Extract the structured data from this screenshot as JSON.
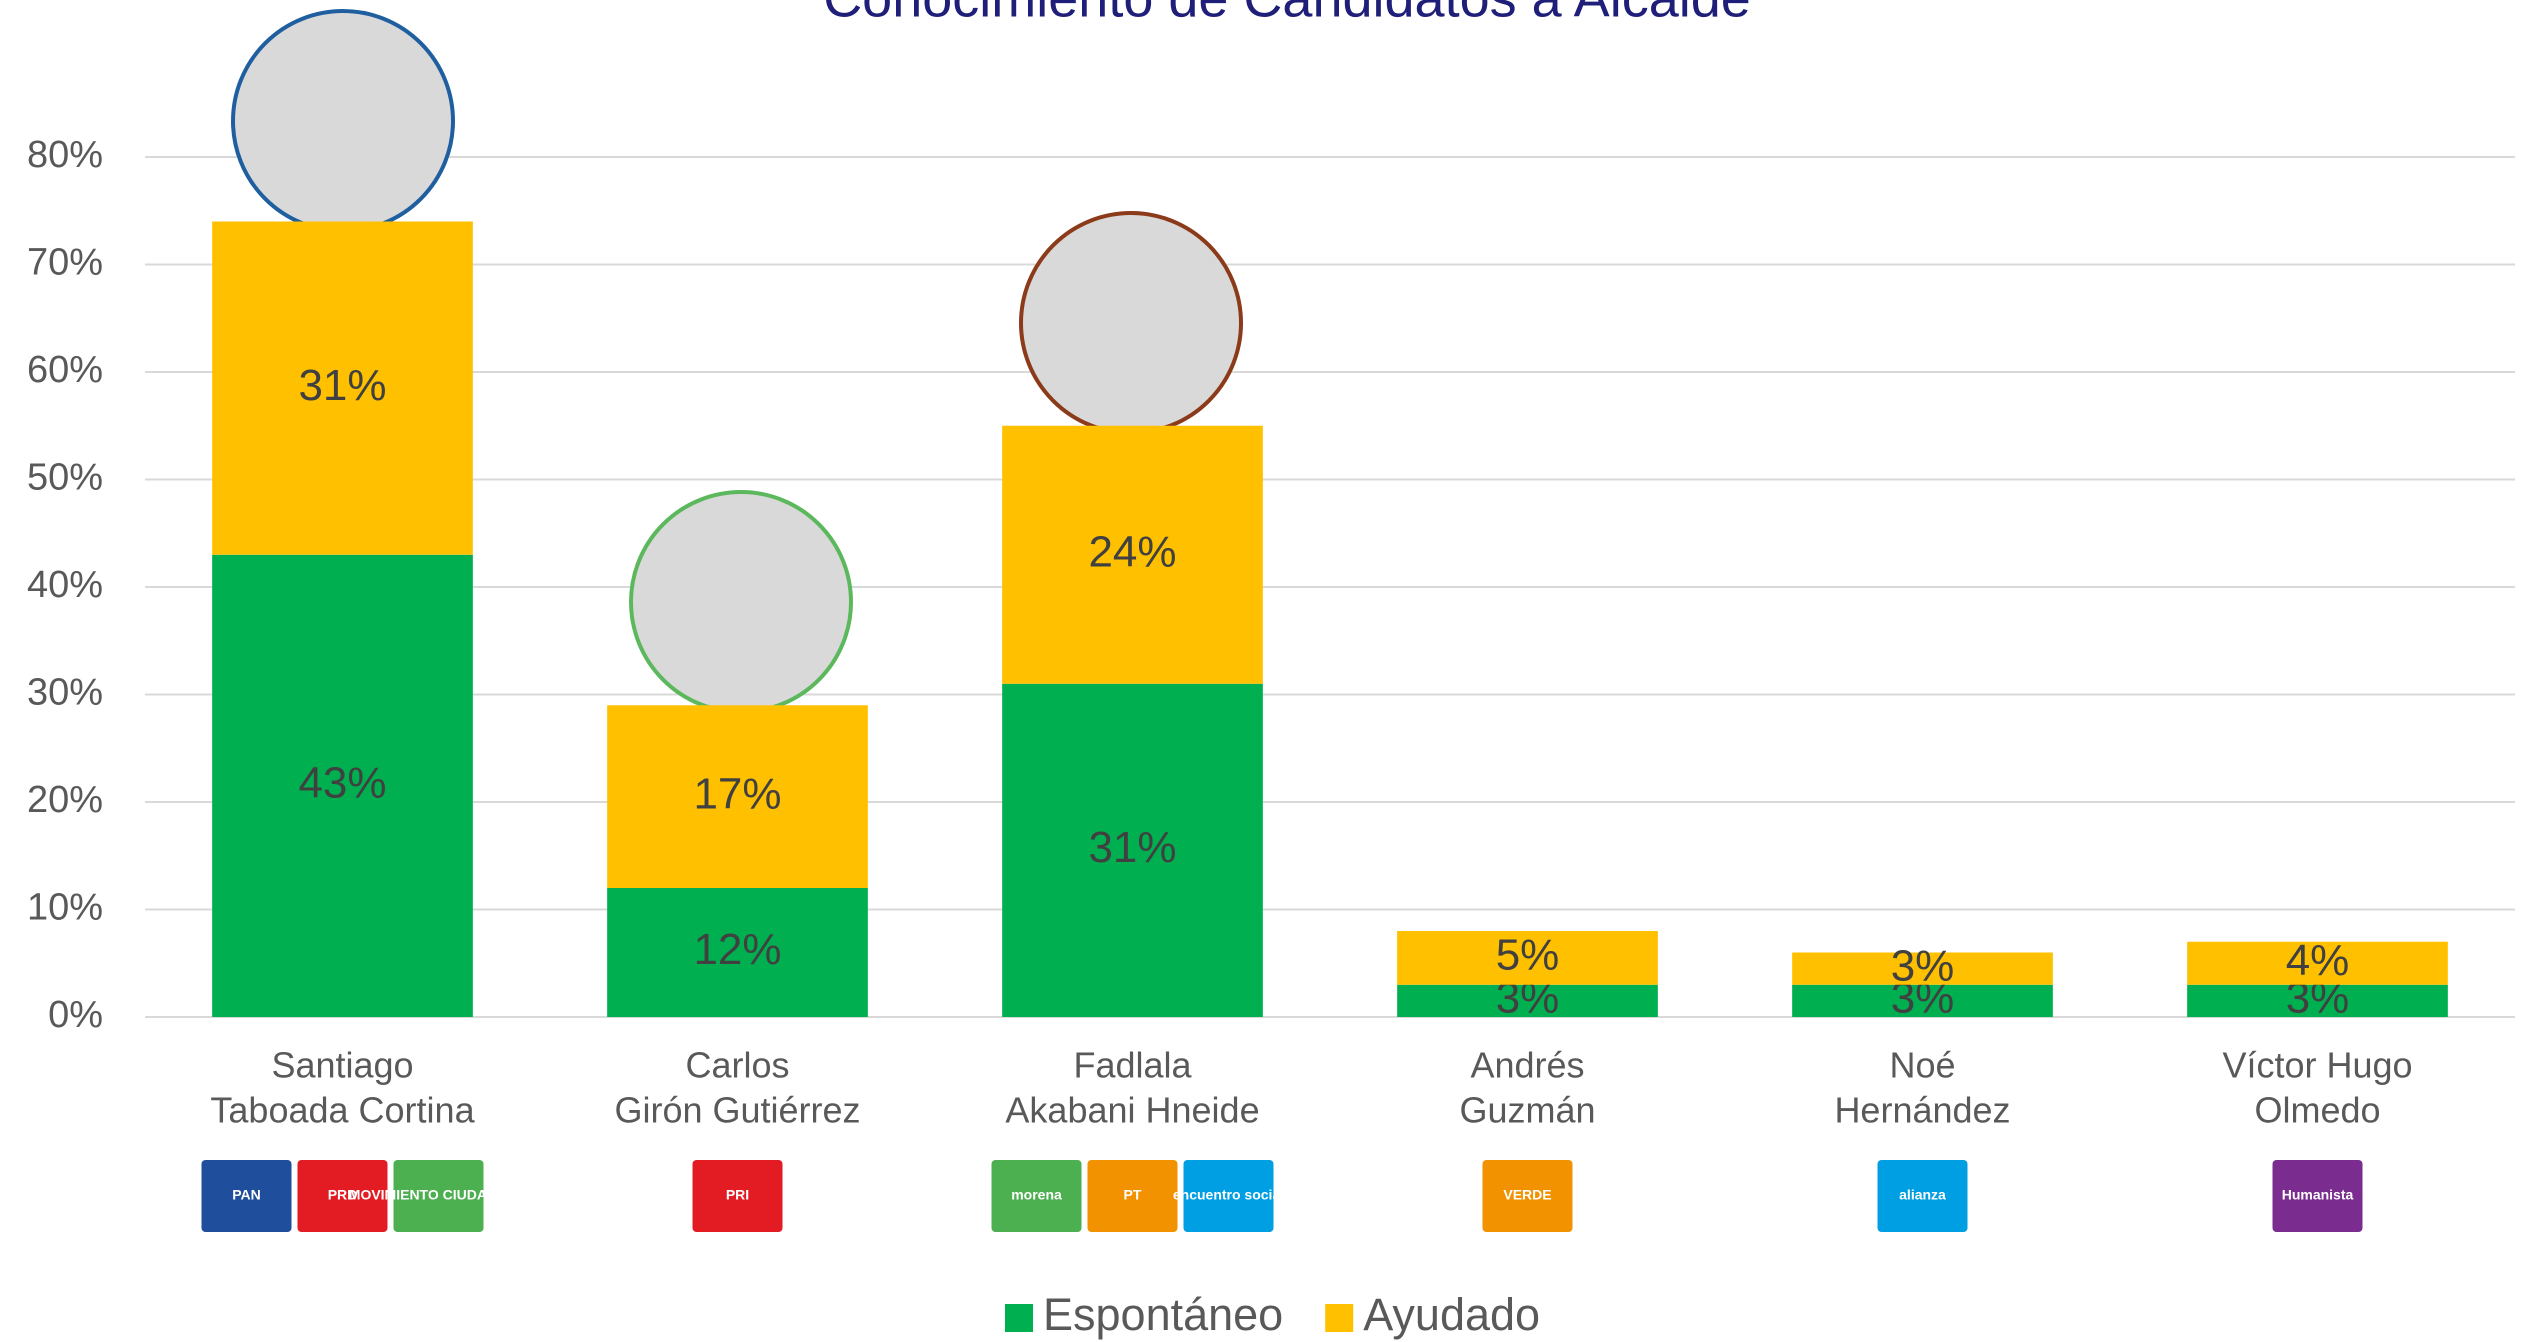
{
  "chart_data": {
    "type": "stacked_bar",
    "title": "Conocimiento de Candidatos a Alcalde",
    "categories": [
      [
        "Santiago",
        "Taboada Cortina"
      ],
      [
        "Carlos",
        "Girón Gutiérrez"
      ],
      [
        "Fadlala",
        "Akabani Hneide"
      ],
      [
        "Andrés",
        "Guzmán"
      ],
      [
        "Noé",
        "Hernández"
      ],
      [
        "Víctor Hugo",
        "Olmedo"
      ]
    ],
    "series": [
      {
        "name": "Espontáneo",
        "color": "#00b050",
        "values": [
          43,
          12,
          31,
          3,
          3,
          3
        ],
        "value_labels": [
          "43%",
          "12%",
          "31%",
          "3%",
          "3%",
          "3%"
        ]
      },
      {
        "name": "Ayudado",
        "color": "#ffc000",
        "values": [
          31,
          17,
          24,
          5,
          3,
          4
        ],
        "value_labels": [
          "31%",
          "17%",
          "24%",
          "5%",
          "3%",
          "4%"
        ]
      }
    ],
    "ylim": [
      0,
      80
    ],
    "yticks": [
      {
        "value": 0,
        "label": "0%"
      },
      {
        "value": 10,
        "label": "10%"
      },
      {
        "value": 20,
        "label": "20%"
      },
      {
        "value": 30,
        "label": "30%"
      },
      {
        "value": 40,
        "label": "40%"
      },
      {
        "value": 50,
        "label": "50%"
      },
      {
        "value": 60,
        "label": "60%"
      },
      {
        "value": 70,
        "label": "70%"
      },
      {
        "value": 80,
        "label": "80%"
      }
    ],
    "grid": true,
    "legend": "bottom",
    "logos": [
      [
        "PAN",
        "PRD",
        "MOVIMIENTO CIUDADANO"
      ],
      [
        "PRI"
      ],
      [
        "morena",
        "PT",
        "encuentro social"
      ],
      [
        "VERDE"
      ],
      [
        "alianza"
      ],
      [
        "Humanista"
      ]
    ]
  }
}
